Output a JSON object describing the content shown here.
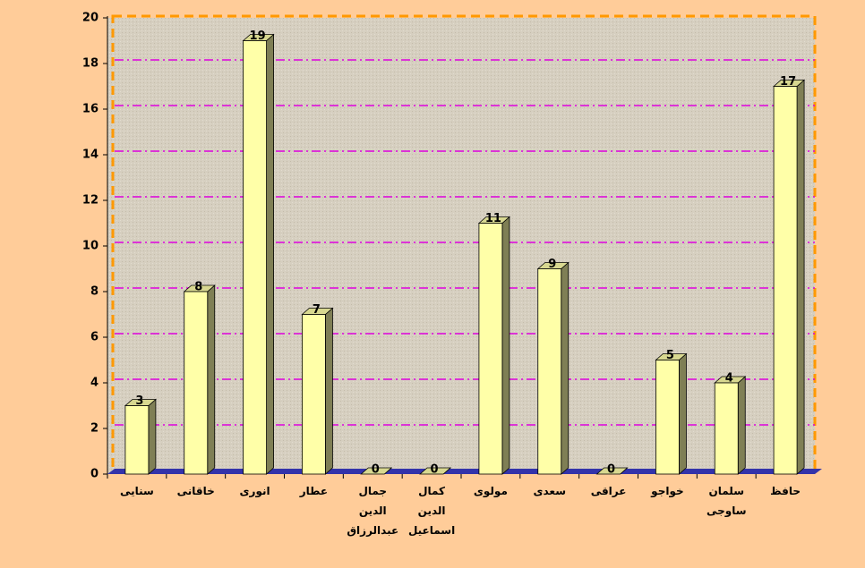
{
  "chart_data": {
    "type": "bar3d",
    "categories": [
      "سنایی",
      "خاقانی",
      "انوری",
      "عطار",
      "جمال الدین عبدالرزاق",
      "کمال الدین اسماعیل",
      "مولوی",
      "سعدی",
      "عراقی",
      "خواجو",
      "سلمان ساوجی",
      "حافظ"
    ],
    "values": [
      3,
      8,
      19,
      7,
      0,
      0,
      11,
      9,
      0,
      5,
      4,
      17
    ],
    "color": "#ffffa8",
    "ylim": [
      0,
      20
    ],
    "yticks": [
      0,
      2,
      4,
      6,
      8,
      10,
      12,
      14,
      16,
      18,
      20
    ],
    "grid": true
  }
}
